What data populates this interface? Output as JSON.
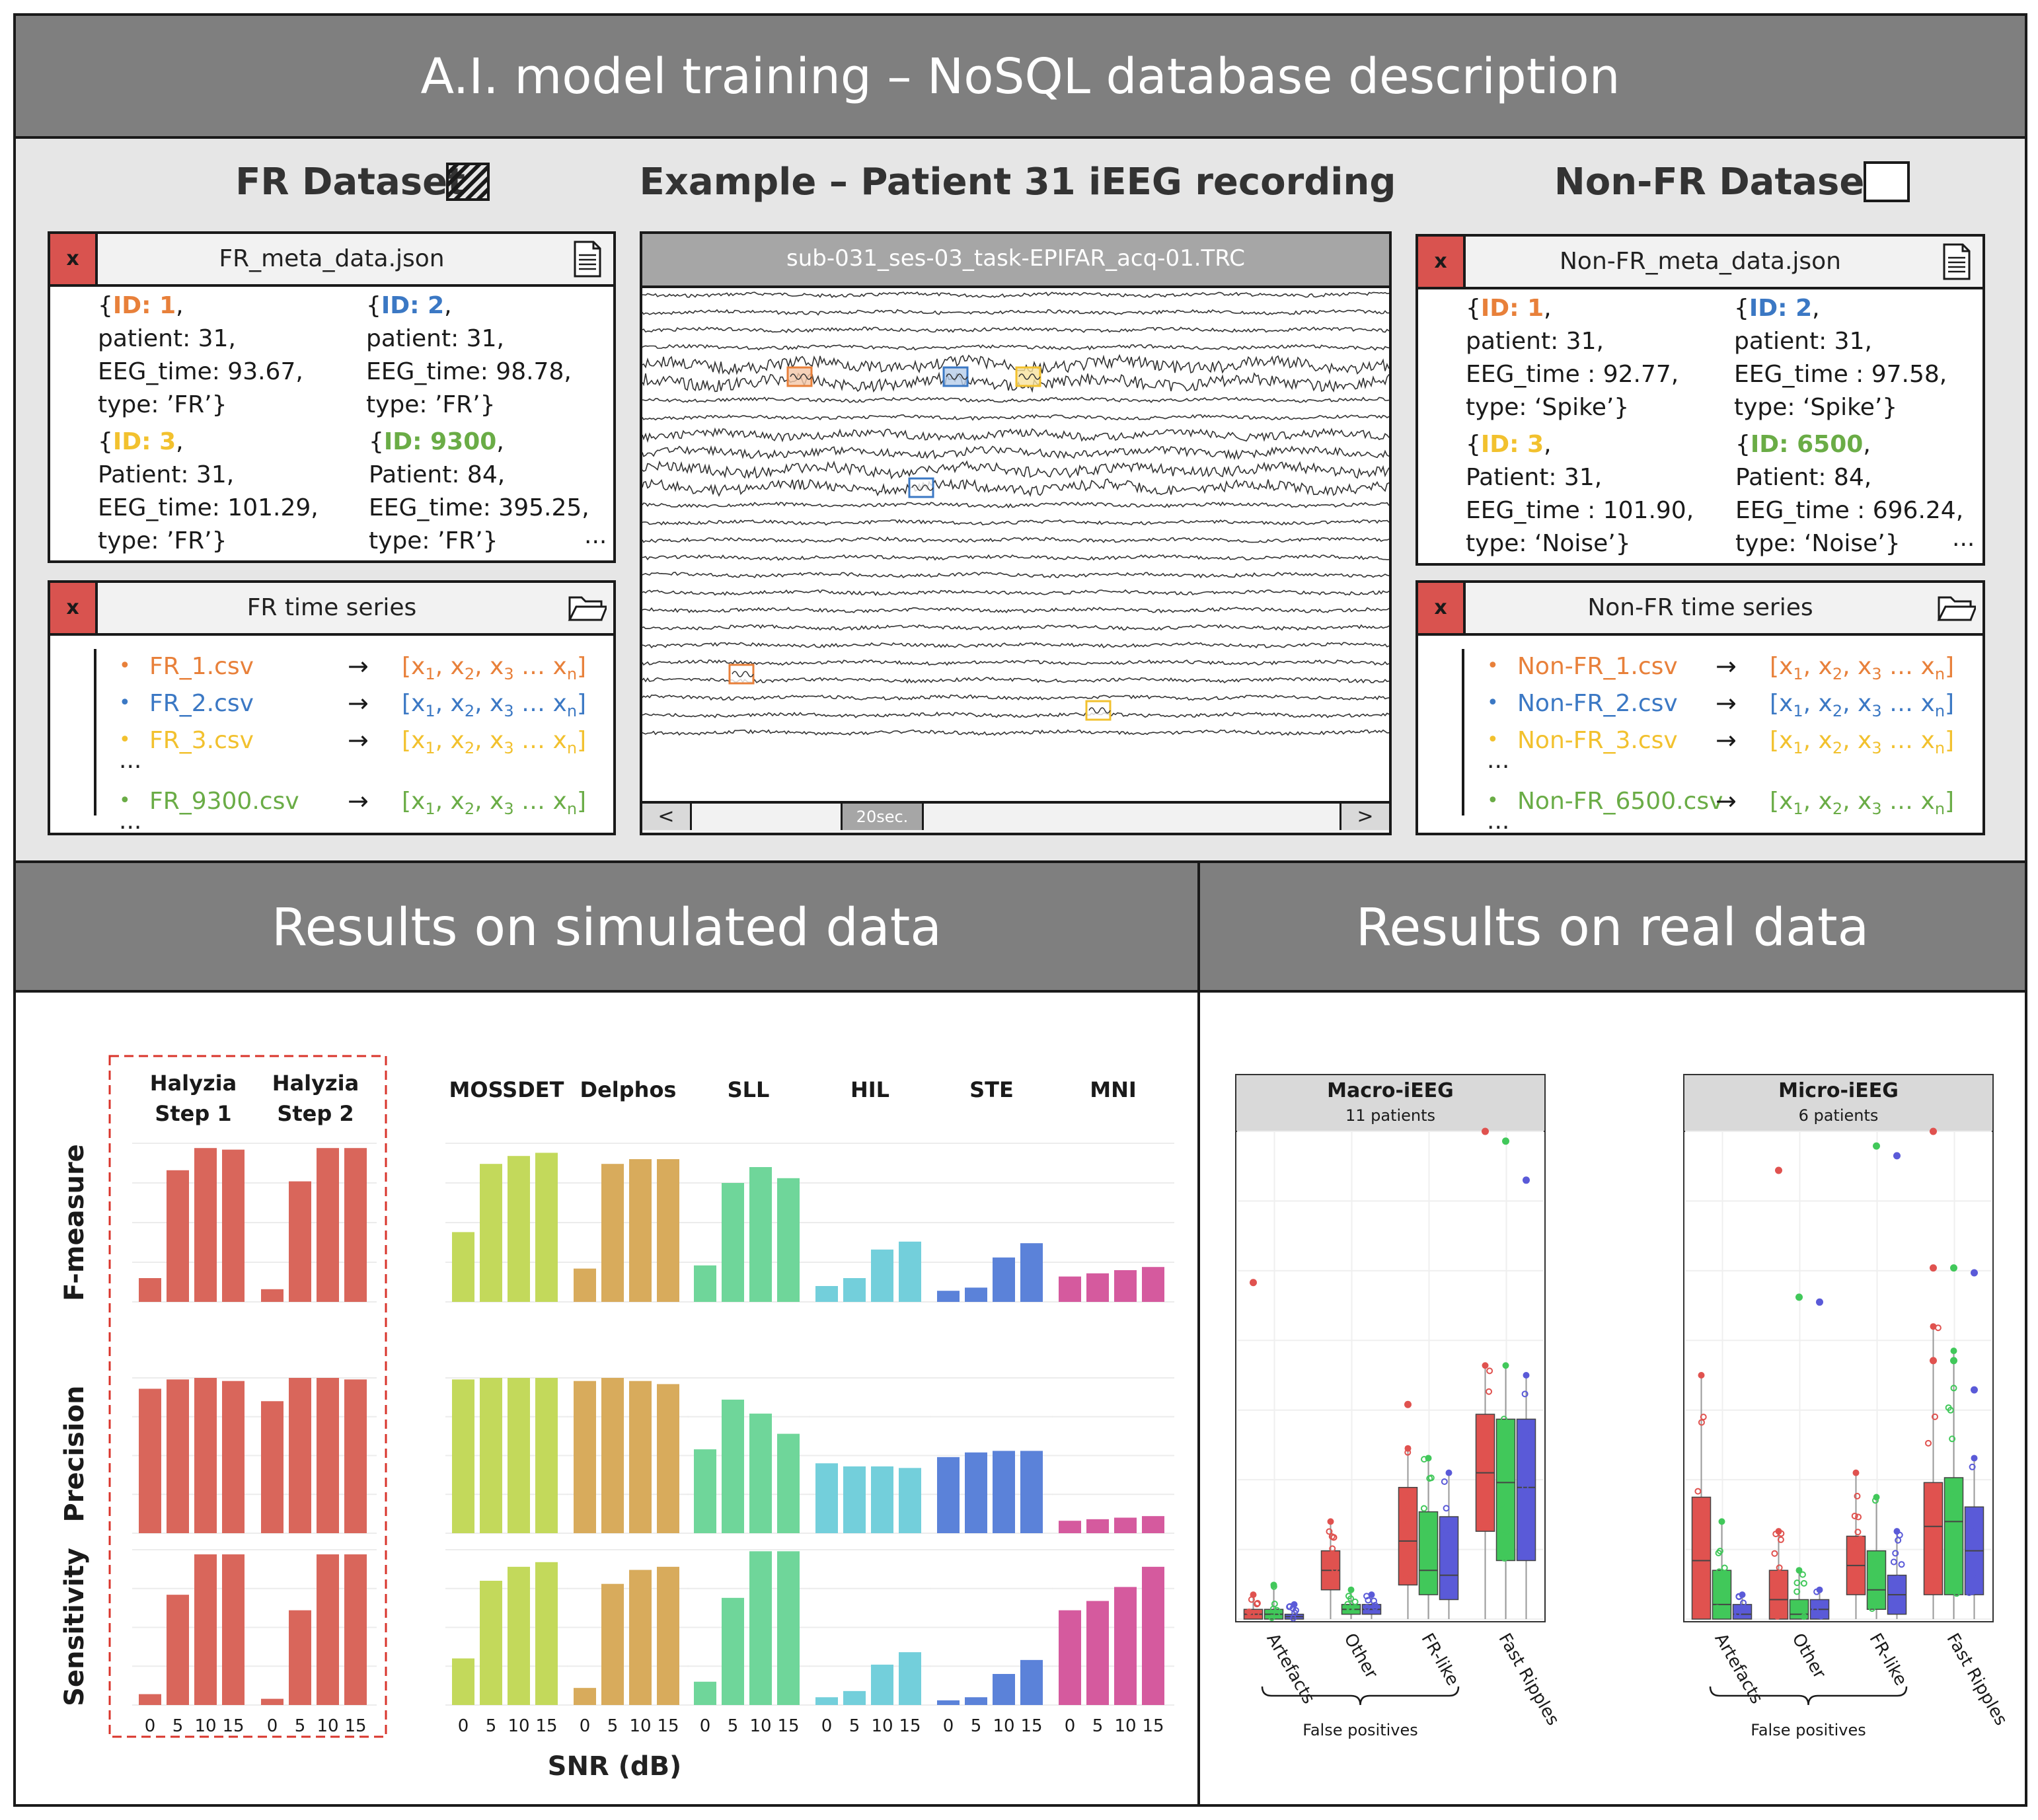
{
  "top": {
    "title": "A.I. model training – NoSQL database description",
    "fr_dataset_title": "FR Dataset",
    "example_title": "Example – Patient 31 iEEG recording",
    "nonfr_dataset_title": "Non-FR Dataset"
  },
  "fr_meta": {
    "close": "x",
    "filename": "FR_meta_data.json",
    "icon": "document-icon",
    "records": [
      {
        "id_label": "ID: 1",
        "id_color": "#e8803a",
        "l1": "patient: 31,",
        "l2": "EEG_time: 93.67,",
        "l3": "type: ’FR’}"
      },
      {
        "id_label": "ID: 2",
        "id_color": "#3b78c4",
        "l1": "patient: 31,",
        "l2": "EEG_time: 98.78,",
        "l3": "type: ’FR’}"
      },
      {
        "id_label": "ID: 3",
        "id_color": "#f2c12e",
        "l1": "Patient: 31,",
        "l2": "EEG_time: 101.29,",
        "l3": "type: ’FR’}"
      },
      {
        "id_label": "ID: 9300",
        "id_color": "#6aac46",
        "l1": "Patient: 84,",
        "l2": "EEG_time: 395.25,",
        "l3": "type: ’FR’}"
      }
    ],
    "ellipsis": "..."
  },
  "fr_series": {
    "close": "x",
    "title": "FR time series",
    "icon": "folder-icon",
    "files": [
      {
        "name": "FR_1.csv",
        "color": "#e8803a"
      },
      {
        "name": "FR_2.csv",
        "color": "#3b78c4"
      },
      {
        "name": "FR_3.csv",
        "color": "#f2c12e"
      },
      {
        "name": "FR_9300.csv",
        "color": "#6aac46"
      }
    ],
    "ellipsis": "..."
  },
  "recording": {
    "filename": "sub-031_ses-03_task-EPIFAR_acq-01.TRC",
    "scroll_left": "<",
    "scroll_right": ">",
    "scroll_label": "20sec."
  },
  "nonfr_meta": {
    "close": "x",
    "filename": "Non-FR_meta_data.json",
    "icon": "document-icon",
    "records": [
      {
        "id_label": "ID: 1",
        "id_color": "#e8803a",
        "l1": "patient: 31,",
        "l2": "EEG_time : 92.77,",
        "l3": "type: ‘Spike’}"
      },
      {
        "id_label": "ID: 2",
        "id_color": "#3b78c4",
        "l1": "patient: 31,",
        "l2": "EEG_time : 97.58,",
        "l3": "type: ‘Spike’}"
      },
      {
        "id_label": "ID: 3",
        "id_color": "#f2c12e",
        "l1": "Patient: 31,",
        "l2": "EEG_time : 101.90,",
        "l3": "type: ‘Noise’}"
      },
      {
        "id_label": "ID: 6500",
        "id_color": "#6aac46",
        "l1": "Patient: 84,",
        "l2": "EEG_time : 696.24,",
        "l3": "type: ‘Noise’}"
      }
    ],
    "ellipsis": "..."
  },
  "nonfr_series": {
    "close": "x",
    "title": "Non-FR time series",
    "icon": "folder-icon",
    "files": [
      {
        "name": "Non-FR_1.csv",
        "color": "#e8803a"
      },
      {
        "name": "Non-FR_2.csv",
        "color": "#3b78c4"
      },
      {
        "name": "Non-FR_3.csv",
        "color": "#f2c12e"
      },
      {
        "name": "Non-FR_6500.csv",
        "color": "#6aac46"
      }
    ],
    "ellipsis": "..."
  },
  "vector": {
    "x": "x",
    "sub1": "1",
    "sub2": "2",
    "sub3": "3",
    "subn": "n",
    "dots": "…"
  },
  "simulated": {
    "title": "Results on simulated data",
    "rows": [
      "F-measure",
      "Precision",
      "Sensitivity"
    ],
    "x_axis_title": "SNR (dB)",
    "ticks": [
      "0",
      "5",
      "10",
      "15"
    ]
  },
  "real": {
    "title": "Results on real data",
    "facets": [
      {
        "title": "Macro-iEEG",
        "subtitle": "11 patients"
      },
      {
        "title": "Micro-iEEG",
        "subtitle": "6 patients"
      }
    ],
    "categories": [
      "Artefacts",
      "Other",
      "FR-like",
      "Fast Ripples"
    ],
    "group_label": "False positives"
  },
  "chart_data": [
    {
      "type": "bar",
      "x": [
        "0",
        "5",
        "10",
        "15"
      ],
      "xlabel": "SNR (dB)",
      "colors": {
        "Halyzia Step 1": "#d9665b",
        "Halyzia Step 2": "#d9665b",
        "MOSSDET": "#c3d95b",
        "Delphos": "#d8ab5c",
        "SLL": "#6fd69a",
        "HIL": "#73cfdb",
        "STE": "#5b82d9",
        "MNI": "#d55a9e"
      },
      "series": [
        {
          "name": "Halyzia Step 1",
          "f_measure": [
            0.15,
            0.83,
            0.97,
            0.96
          ],
          "precision": [
            0.93,
            0.99,
            1.0,
            0.98
          ],
          "sensitivity": [
            0.07,
            0.71,
            0.97,
            0.97
          ]
        },
        {
          "name": "Halyzia Step 2",
          "f_measure": [
            0.08,
            0.76,
            0.97,
            0.97
          ],
          "precision": [
            0.85,
            1.0,
            1.0,
            0.99
          ],
          "sensitivity": [
            0.04,
            0.61,
            0.97,
            0.97
          ]
        },
        {
          "name": "MOSSDET",
          "f_measure": [
            0.44,
            0.87,
            0.92,
            0.94
          ],
          "precision": [
            0.99,
            1.0,
            1.0,
            1.0
          ],
          "sensitivity": [
            0.3,
            0.8,
            0.89,
            0.92
          ]
        },
        {
          "name": "Delphos",
          "f_measure": [
            0.21,
            0.87,
            0.9,
            0.9
          ],
          "precision": [
            0.98,
            1.0,
            0.98,
            0.96
          ],
          "sensitivity": [
            0.11,
            0.78,
            0.87,
            0.89
          ]
        },
        {
          "name": "SLL",
          "f_measure": [
            0.23,
            0.75,
            0.85,
            0.78
          ],
          "precision": [
            0.54,
            0.86,
            0.77,
            0.64
          ],
          "sensitivity": [
            0.15,
            0.69,
            0.99,
            0.99
          ]
        },
        {
          "name": "HIL",
          "f_measure": [
            0.1,
            0.15,
            0.33,
            0.38
          ],
          "precision": [
            0.45,
            0.43,
            0.43,
            0.42
          ],
          "sensitivity": [
            0.05,
            0.09,
            0.26,
            0.34
          ]
        },
        {
          "name": "STE",
          "f_measure": [
            0.07,
            0.09,
            0.28,
            0.37
          ],
          "precision": [
            0.49,
            0.52,
            0.53,
            0.53
          ],
          "sensitivity": [
            0.03,
            0.05,
            0.2,
            0.29
          ]
        },
        {
          "name": "MNI",
          "f_measure": [
            0.16,
            0.18,
            0.2,
            0.22
          ],
          "precision": [
            0.08,
            0.09,
            0.1,
            0.11
          ],
          "sensitivity": [
            0.61,
            0.67,
            0.76,
            0.89
          ]
        }
      ]
    },
    {
      "type": "box",
      "facets": [
        "Macro-iEEG",
        "Micro-iEEG"
      ],
      "categories": [
        "Artefacts",
        "Other",
        "FR-like",
        "Fast Ripples"
      ],
      "series_colors": [
        "#e0524f",
        "#41c85a",
        "#5a5ad8"
      ],
      "ylim": [
        0,
        1
      ]
    }
  ]
}
